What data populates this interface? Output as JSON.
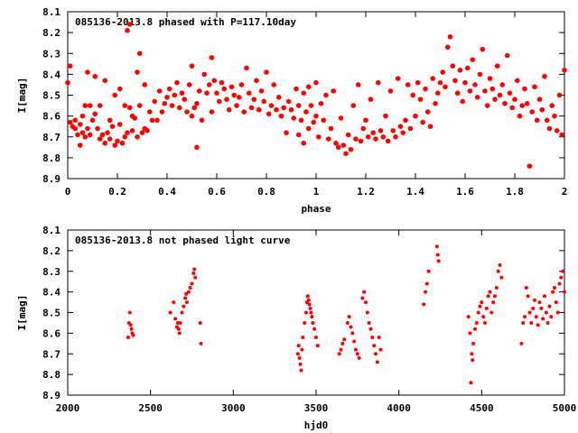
{
  "chart_data": [
    {
      "type": "scatter",
      "title": "085136-2013.8 phased with P=117.10day",
      "xlabel": "phase",
      "ylabel": "I[mag]",
      "xlim": [
        0,
        2
      ],
      "ylim": [
        8.9,
        8.1
      ],
      "y_inverted": true,
      "marker_color": "#ff0000",
      "xticks": [
        "0",
        "0.2",
        "0.4",
        "0.6",
        "0.8",
        "1",
        "1.2",
        "1.4",
        "1.6",
        "1.8",
        "2"
      ],
      "yticks": [
        "8.1",
        "8.2",
        "8.3",
        "8.4",
        "8.5",
        "8.6",
        "8.7",
        "8.8",
        "8.9"
      ],
      "points": [
        [
          0.0,
          8.44
        ],
        [
          0.01,
          8.63
        ],
        [
          0.01,
          8.36
        ],
        [
          0.02,
          8.65
        ],
        [
          0.03,
          8.62
        ],
        [
          0.03,
          8.66
        ],
        [
          0.04,
          8.69
        ],
        [
          0.05,
          8.64
        ],
        [
          0.05,
          8.74
        ],
        [
          0.06,
          8.6
        ],
        [
          0.06,
          8.68
        ],
        [
          0.07,
          8.55
        ],
        [
          0.07,
          8.7
        ],
        [
          0.08,
          8.39
        ],
        [
          0.08,
          8.66
        ],
        [
          0.09,
          8.69
        ],
        [
          0.09,
          8.55
        ],
        [
          0.1,
          8.62
        ],
        [
          0.11,
          8.59
        ],
        [
          0.11,
          8.41
        ],
        [
          0.12,
          8.66
        ],
        [
          0.13,
          8.71
        ],
        [
          0.13,
          8.55
        ],
        [
          0.14,
          8.69
        ],
        [
          0.15,
          8.73
        ],
        [
          0.15,
          8.43
        ],
        [
          0.16,
          8.68
        ],
        [
          0.17,
          8.71
        ],
        [
          0.17,
          8.62
        ],
        [
          0.18,
          8.65
        ],
        [
          0.19,
          8.74
        ],
        [
          0.19,
          8.5
        ],
        [
          0.2,
          8.72
        ],
        [
          0.21,
          8.64
        ],
        [
          0.21,
          8.47
        ],
        [
          0.22,
          8.73
        ],
        [
          0.23,
          8.7
        ],
        [
          0.23,
          8.55
        ],
        [
          0.24,
          8.68
        ],
        [
          0.24,
          8.19
        ],
        [
          0.25,
          8.16
        ],
        [
          0.25,
          8.56
        ],
        [
          0.26,
          8.67
        ],
        [
          0.26,
          8.6
        ],
        [
          0.27,
          8.61
        ],
        [
          0.28,
          8.7
        ],
        [
          0.28,
          8.39
        ],
        [
          0.29,
          8.55
        ],
        [
          0.29,
          8.3
        ],
        [
          0.3,
          8.68
        ],
        [
          0.31,
          8.66
        ],
        [
          0.31,
          8.45
        ],
        [
          0.32,
          8.67
        ],
        [
          0.33,
          8.58
        ],
        [
          0.34,
          8.62
        ],
        [
          0.35,
          8.53
        ],
        [
          0.36,
          8.62
        ],
        [
          0.37,
          8.48
        ],
        [
          0.38,
          8.58
        ],
        [
          0.39,
          8.54
        ],
        [
          0.4,
          8.51
        ],
        [
          0.41,
          8.47
        ],
        [
          0.42,
          8.55
        ],
        [
          0.43,
          8.5
        ],
        [
          0.44,
          8.44
        ],
        [
          0.45,
          8.56
        ],
        [
          0.46,
          8.49
        ],
        [
          0.47,
          8.52
        ],
        [
          0.48,
          8.58
        ],
        [
          0.49,
          8.45
        ],
        [
          0.5,
          8.6
        ],
        [
          0.5,
          8.36
        ],
        [
          0.51,
          8.56
        ],
        [
          0.52,
          8.54
        ],
        [
          0.52,
          8.75
        ],
        [
          0.53,
          8.48
        ],
        [
          0.54,
          8.62
        ],
        [
          0.55,
          8.4
        ],
        [
          0.56,
          8.49
        ],
        [
          0.57,
          8.45
        ],
        [
          0.58,
          8.58
        ],
        [
          0.58,
          8.32
        ],
        [
          0.59,
          8.43
        ],
        [
          0.6,
          8.49
        ],
        [
          0.61,
          8.53
        ],
        [
          0.62,
          8.44
        ],
        [
          0.63,
          8.47
        ],
        [
          0.64,
          8.52
        ],
        [
          0.65,
          8.57
        ],
        [
          0.66,
          8.46
        ],
        [
          0.67,
          8.5
        ],
        [
          0.68,
          8.55
        ],
        [
          0.69,
          8.51
        ],
        [
          0.7,
          8.45
        ],
        [
          0.71,
          8.58
        ],
        [
          0.72,
          8.37
        ],
        [
          0.73,
          8.49
        ],
        [
          0.74,
          8.56
        ],
        [
          0.75,
          8.52
        ],
        [
          0.76,
          8.43
        ],
        [
          0.77,
          8.57
        ],
        [
          0.78,
          8.48
        ],
        [
          0.79,
          8.53
        ],
        [
          0.8,
          8.39
        ],
        [
          0.81,
          8.59
        ],
        [
          0.82,
          8.55
        ],
        [
          0.83,
          8.45
        ],
        [
          0.84,
          8.57
        ],
        [
          0.85,
          8.51
        ],
        [
          0.86,
          8.6
        ],
        [
          0.87,
          8.56
        ],
        [
          0.88,
          8.68
        ],
        [
          0.89,
          8.53
        ],
        [
          0.9,
          8.57
        ],
        [
          0.91,
          8.61
        ],
        [
          0.92,
          8.47
        ],
        [
          0.93,
          8.55
        ],
        [
          0.93,
          8.69
        ],
        [
          0.94,
          8.62
        ],
        [
          0.95,
          8.49
        ],
        [
          0.95,
          8.73
        ],
        [
          0.96,
          8.58
        ],
        [
          0.97,
          8.66
        ],
        [
          0.97,
          8.46
        ],
        [
          0.98,
          8.55
        ],
        [
          0.99,
          8.63
        ],
        [
          1.0,
          8.44
        ],
        [
          1.0,
          8.6
        ],
        [
          1.01,
          8.7
        ],
        [
          1.02,
          8.54
        ],
        [
          1.03,
          8.62
        ],
        [
          1.04,
          8.5
        ],
        [
          1.05,
          8.71
        ],
        [
          1.06,
          8.66
        ],
        [
          1.07,
          8.48
        ],
        [
          1.08,
          8.73
        ],
        [
          1.09,
          8.75
        ],
        [
          1.1,
          8.61
        ],
        [
          1.11,
          8.74
        ],
        [
          1.12,
          8.78
        ],
        [
          1.13,
          8.69
        ],
        [
          1.14,
          8.76
        ],
        [
          1.15,
          8.55
        ],
        [
          1.16,
          8.71
        ],
        [
          1.17,
          8.45
        ],
        [
          1.18,
          8.72
        ],
        [
          1.19,
          8.66
        ],
        [
          1.2,
          8.62
        ],
        [
          1.21,
          8.7
        ],
        [
          1.22,
          8.52
        ],
        [
          1.23,
          8.68
        ],
        [
          1.24,
          8.71
        ],
        [
          1.25,
          8.44
        ],
        [
          1.26,
          8.67
        ],
        [
          1.27,
          8.7
        ],
        [
          1.28,
          8.6
        ],
        [
          1.29,
          8.72
        ],
        [
          1.3,
          8.48
        ],
        [
          1.31,
          8.67
        ],
        [
          1.32,
          8.7
        ],
        [
          1.33,
          8.42
        ],
        [
          1.34,
          8.65
        ],
        [
          1.35,
          8.68
        ],
        [
          1.36,
          8.62
        ],
        [
          1.37,
          8.45
        ],
        [
          1.38,
          8.66
        ],
        [
          1.39,
          8.5
        ],
        [
          1.4,
          8.6
        ],
        [
          1.41,
          8.44
        ],
        [
          1.42,
          8.52
        ],
        [
          1.43,
          8.63
        ],
        [
          1.44,
          8.47
        ],
        [
          1.45,
          8.58
        ],
        [
          1.46,
          8.65
        ],
        [
          1.47,
          8.42
        ],
        [
          1.48,
          8.54
        ],
        [
          1.49,
          8.49
        ],
        [
          1.5,
          8.44
        ],
        [
          1.51,
          8.39
        ],
        [
          1.52,
          8.46
        ],
        [
          1.53,
          8.27
        ],
        [
          1.54,
          8.22
        ],
        [
          1.55,
          8.36
        ],
        [
          1.56,
          8.43
        ],
        [
          1.57,
          8.49
        ],
        [
          1.58,
          8.38
        ],
        [
          1.59,
          8.53
        ],
        [
          1.6,
          8.44
        ],
        [
          1.61,
          8.37
        ],
        [
          1.62,
          8.48
        ],
        [
          1.63,
          8.33
        ],
        [
          1.64,
          8.45
        ],
        [
          1.65,
          8.51
        ],
        [
          1.66,
          8.4
        ],
        [
          1.67,
          8.28
        ],
        [
          1.68,
          8.48
        ],
        [
          1.69,
          8.55
        ],
        [
          1.7,
          8.42
        ],
        [
          1.71,
          8.47
        ],
        [
          1.72,
          8.52
        ],
        [
          1.73,
          8.36
        ],
        [
          1.74,
          8.5
        ],
        [
          1.75,
          8.45
        ],
        [
          1.76,
          8.54
        ],
        [
          1.77,
          8.31
        ],
        [
          1.78,
          8.49
        ],
        [
          1.79,
          8.56
        ],
        [
          1.8,
          8.52
        ],
        [
          1.81,
          8.43
        ],
        [
          1.82,
          8.6
        ],
        [
          1.83,
          8.55
        ],
        [
          1.84,
          8.47
        ],
        [
          1.85,
          8.54
        ],
        [
          1.86,
          8.84
        ],
        [
          1.87,
          8.58
        ],
        [
          1.88,
          8.46
        ],
        [
          1.89,
          8.62
        ],
        [
          1.9,
          8.52
        ],
        [
          1.91,
          8.57
        ],
        [
          1.92,
          8.41
        ],
        [
          1.93,
          8.62
        ],
        [
          1.94,
          8.66
        ],
        [
          1.95,
          8.55
        ],
        [
          1.96,
          8.6
        ],
        [
          1.97,
          8.67
        ],
        [
          1.98,
          8.5
        ],
        [
          1.99,
          8.69
        ],
        [
          2.0,
          8.38
        ]
      ]
    },
    {
      "type": "scatter",
      "title": "085136-2013.8 not phased light curve",
      "xlabel": "hjd0",
      "ylabel": "I[mag]",
      "xlim": [
        2000,
        5000
      ],
      "ylim": [
        8.9,
        8.1
      ],
      "y_inverted": true,
      "marker_color": "#ff0000",
      "xticks": [
        "2000",
        "2500",
        "3000",
        "3500",
        "4000",
        "4500",
        "5000"
      ],
      "yticks": [
        "8.1",
        "8.2",
        "8.3",
        "8.4",
        "8.5",
        "8.6",
        "8.7",
        "8.8",
        "8.9"
      ],
      "points": [
        [
          2365,
          8.62
        ],
        [
          2370,
          8.55
        ],
        [
          2375,
          8.5
        ],
        [
          2380,
          8.56
        ],
        [
          2385,
          8.58
        ],
        [
          2390,
          8.6
        ],
        [
          2395,
          8.61
        ],
        [
          2620,
          8.5
        ],
        [
          2640,
          8.45
        ],
        [
          2650,
          8.53
        ],
        [
          2660,
          8.57
        ],
        [
          2665,
          8.55
        ],
        [
          2670,
          8.58
        ],
        [
          2675,
          8.6
        ],
        [
          2680,
          8.55
        ],
        [
          2690,
          8.5
        ],
        [
          2700,
          8.47
        ],
        [
          2710,
          8.43
        ],
        [
          2715,
          8.41
        ],
        [
          2720,
          8.45
        ],
        [
          2730,
          8.4
        ],
        [
          2740,
          8.38
        ],
        [
          2750,
          8.36
        ],
        [
          2760,
          8.31
        ],
        [
          2765,
          8.29
        ],
        [
          2770,
          8.33
        ],
        [
          2800,
          8.55
        ],
        [
          2805,
          8.65
        ],
        [
          3390,
          8.7
        ],
        [
          3395,
          8.66
        ],
        [
          3400,
          8.72
        ],
        [
          3405,
          8.75
        ],
        [
          3410,
          8.78
        ],
        [
          3415,
          8.68
        ],
        [
          3420,
          8.62
        ],
        [
          3430,
          8.55
        ],
        [
          3440,
          8.5
        ],
        [
          3445,
          8.45
        ],
        [
          3450,
          8.42
        ],
        [
          3455,
          8.44
        ],
        [
          3460,
          8.46
        ],
        [
          3465,
          8.48
        ],
        [
          3470,
          8.5
        ],
        [
          3475,
          8.52
        ],
        [
          3480,
          8.55
        ],
        [
          3490,
          8.58
        ],
        [
          3500,
          8.62
        ],
        [
          3510,
          8.66
        ],
        [
          3640,
          8.7
        ],
        [
          3650,
          8.68
        ],
        [
          3660,
          8.65
        ],
        [
          3670,
          8.63
        ],
        [
          3690,
          8.55
        ],
        [
          3700,
          8.52
        ],
        [
          3710,
          8.57
        ],
        [
          3720,
          8.6
        ],
        [
          3730,
          8.64
        ],
        [
          3740,
          8.68
        ],
        [
          3750,
          8.7
        ],
        [
          3760,
          8.72
        ],
        [
          3780,
          8.43
        ],
        [
          3790,
          8.4
        ],
        [
          3800,
          8.45
        ],
        [
          3810,
          8.5
        ],
        [
          3820,
          8.55
        ],
        [
          3830,
          8.58
        ],
        [
          3840,
          8.62
        ],
        [
          3850,
          8.66
        ],
        [
          3860,
          8.7
        ],
        [
          3870,
          8.74
        ],
        [
          3880,
          8.62
        ],
        [
          3890,
          8.68
        ],
        [
          4150,
          8.46
        ],
        [
          4160,
          8.4
        ],
        [
          4170,
          8.36
        ],
        [
          4180,
          8.3
        ],
        [
          4230,
          8.18
        ],
        [
          4235,
          8.22
        ],
        [
          4240,
          8.25
        ],
        [
          4420,
          8.52
        ],
        [
          4430,
          8.6
        ],
        [
          4435,
          8.84
        ],
        [
          4440,
          8.7
        ],
        [
          4445,
          8.73
        ],
        [
          4450,
          8.65
        ],
        [
          4460,
          8.58
        ],
        [
          4470,
          8.55
        ],
        [
          4480,
          8.5
        ],
        [
          4490,
          8.47
        ],
        [
          4500,
          8.45
        ],
        [
          4510,
          8.52
        ],
        [
          4520,
          8.55
        ],
        [
          4530,
          8.48
        ],
        [
          4540,
          8.42
        ],
        [
          4550,
          8.4
        ],
        [
          4560,
          8.5
        ],
        [
          4570,
          8.45
        ],
        [
          4580,
          8.42
        ],
        [
          4590,
          8.38
        ],
        [
          4600,
          8.3
        ],
        [
          4610,
          8.27
        ],
        [
          4620,
          8.33
        ],
        [
          4740,
          8.65
        ],
        [
          4750,
          8.55
        ],
        [
          4760,
          8.52
        ],
        [
          4770,
          8.38
        ],
        [
          4780,
          8.42
        ],
        [
          4790,
          8.5
        ],
        [
          4800,
          8.55
        ],
        [
          4810,
          8.48
        ],
        [
          4820,
          8.44
        ],
        [
          4830,
          8.52
        ],
        [
          4840,
          8.56
        ],
        [
          4850,
          8.45
        ],
        [
          4860,
          8.48
        ],
        [
          4870,
          8.53
        ],
        [
          4880,
          8.42
        ],
        [
          4890,
          8.5
        ],
        [
          4900,
          8.55
        ],
        [
          4910,
          8.47
        ],
        [
          4920,
          8.52
        ],
        [
          4930,
          8.4
        ],
        [
          4940,
          8.38
        ],
        [
          4950,
          8.45
        ],
        [
          4960,
          8.5
        ],
        [
          4970,
          8.36
        ],
        [
          4980,
          8.33
        ],
        [
          4990,
          8.3
        ],
        [
          5000,
          8.4
        ]
      ]
    }
  ]
}
